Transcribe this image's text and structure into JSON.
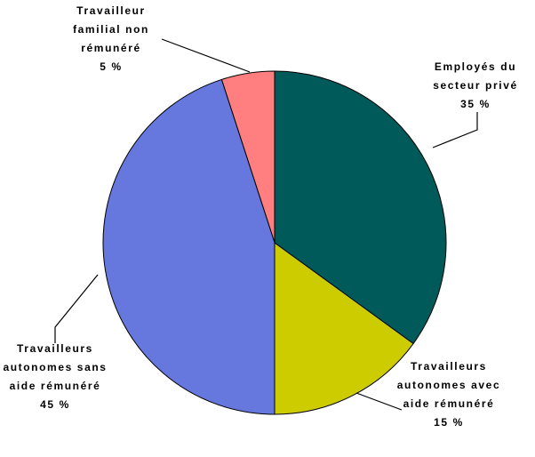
{
  "chart_data": {
    "type": "pie",
    "categories": [
      "Employés du secteur privé",
      "Travailleurs autonomes avec aide rémunéré",
      "Travailleurs autonomes sans aide rémunéré",
      "Travailleur familial non rémunéré"
    ],
    "values": [
      35,
      15,
      45,
      5
    ],
    "value_labels": [
      "35 %",
      "15 %",
      "45 %",
      "5 %"
    ],
    "colors": [
      "#015a5a",
      "#cccc00",
      "#6677dd",
      "#ff7f80"
    ]
  }
}
